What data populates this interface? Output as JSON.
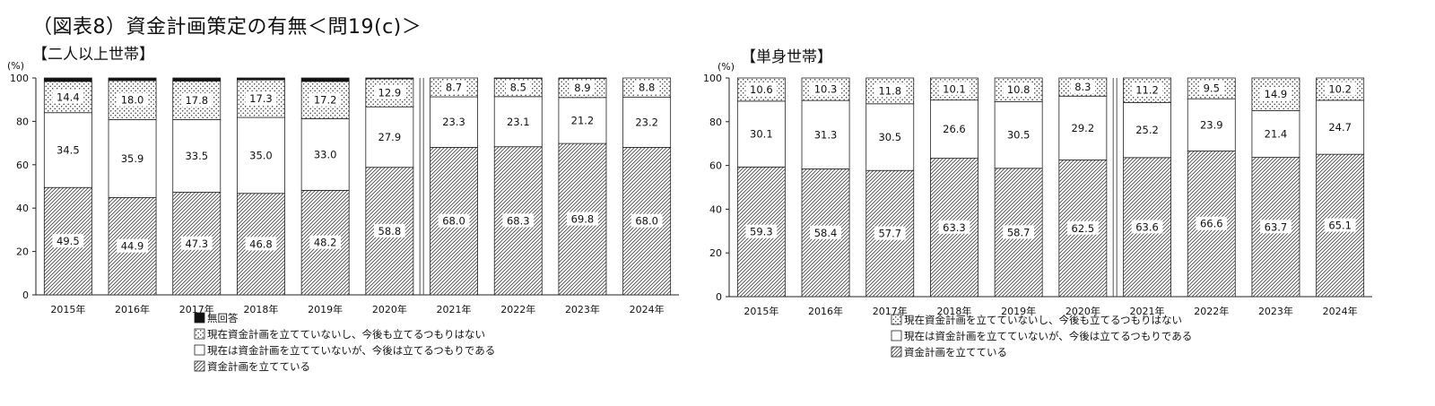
{
  "title": "（図表8）資金計画策定の有無＜問19(c)＞",
  "legend_items": {
    "no_answer": "無回答",
    "no_plan_no_intent": "現在資金計画を立てていないし、今後も立てるつもりはない",
    "no_plan_will_plan": "現在は資金計画を立てていないが、今後は立てるつもりである",
    "has_plan": "資金計画を立てている"
  },
  "colors": {
    "solid": "#111111",
    "outline": "#222222",
    "background": "#ffffff"
  },
  "chart_data": [
    {
      "type": "bar",
      "stacked": true,
      "title": "【二人以上世帯】",
      "ylabel": "(%)",
      "ylim": [
        0,
        100
      ],
      "yticks": [
        0,
        20,
        40,
        60,
        80,
        100
      ],
      "categories": [
        "2015年",
        "2016年",
        "2017年",
        "2018年",
        "2019年",
        "2020年",
        "2021年",
        "2022年",
        "2023年",
        "2024年"
      ],
      "series": [
        {
          "name": "資金計画を立てている",
          "values": [
            49.5,
            44.9,
            47.3,
            46.8,
            48.2,
            58.8,
            68.0,
            68.3,
            69.8,
            68.0
          ],
          "labels": [
            "49.5",
            "44.9",
            "47.3",
            "46.8",
            "48.2",
            "58.8",
            "68.0",
            "68.3",
            "69.8",
            "68.0"
          ]
        },
        {
          "name": "現在は資金計画を立てていないが、今後は立てるつもりである",
          "values": [
            34.5,
            35.9,
            33.5,
            35.0,
            33.0,
            27.9,
            23.3,
            23.1,
            21.2,
            23.2
          ],
          "labels": [
            "34.5",
            "35.9",
            "33.5",
            "35.0",
            "33.0",
            "27.9",
            "23.3",
            "23.1",
            "21.2",
            "23.2"
          ]
        },
        {
          "name": "現在資金計画を立てていないし、今後も立てるつもりはない",
          "values": [
            14.4,
            18.0,
            17.8,
            17.3,
            17.2,
            12.9,
            8.7,
            8.5,
            8.9,
            8.8
          ],
          "labels": [
            "14.4",
            "18.0",
            "17.8",
            "17.3",
            "17.2",
            "12.9",
            "8.7",
            "8.5",
            "8.9",
            "8.8"
          ]
        },
        {
          "name": "無回答",
          "values": [
            1.6,
            1.2,
            1.4,
            0.9,
            1.6,
            0.4,
            0.0,
            0.1,
            0.1,
            0.0
          ],
          "labels": [
            "",
            "",
            "",
            "",
            "",
            "",
            "",
            "",
            "",
            ""
          ]
        }
      ],
      "separator_after_index": 5
    },
    {
      "type": "bar",
      "stacked": true,
      "title": "【単身世帯】",
      "ylabel": "(%)",
      "ylim": [
        0,
        100
      ],
      "yticks": [
        0,
        20,
        40,
        60,
        80,
        100
      ],
      "categories": [
        "2015年",
        "2016年",
        "2017年",
        "2018年",
        "2019年",
        "2020年",
        "2021年",
        "2022年",
        "2023年",
        "2024年"
      ],
      "series": [
        {
          "name": "資金計画を立てている",
          "values": [
            59.3,
            58.4,
            57.7,
            63.3,
            58.7,
            62.5,
            63.6,
            66.6,
            63.7,
            65.1
          ],
          "labels": [
            "59.3",
            "58.4",
            "57.7",
            "63.3",
            "58.7",
            "62.5",
            "63.6",
            "66.6",
            "63.7",
            "65.1"
          ]
        },
        {
          "name": "現在は資金計画を立てていないが、今後は立てるつもりである",
          "values": [
            30.1,
            31.3,
            30.5,
            26.6,
            30.5,
            29.2,
            25.2,
            23.9,
            21.4,
            24.7
          ],
          "labels": [
            "30.1",
            "31.3",
            "30.5",
            "26.6",
            "30.5",
            "29.2",
            "25.2",
            "23.9",
            "21.4",
            "24.7"
          ]
        },
        {
          "name": "現在資金計画を立てていないし、今後も立てるつもりはない",
          "values": [
            10.6,
            10.3,
            11.8,
            10.1,
            10.8,
            8.3,
            11.2,
            9.5,
            14.9,
            10.2
          ],
          "labels": [
            "10.6",
            "10.3",
            "11.8",
            "10.1",
            "10.8",
            "8.3",
            "11.2",
            "9.5",
            "14.9",
            "10.2"
          ]
        }
      ],
      "separator_after_index": 5
    }
  ]
}
